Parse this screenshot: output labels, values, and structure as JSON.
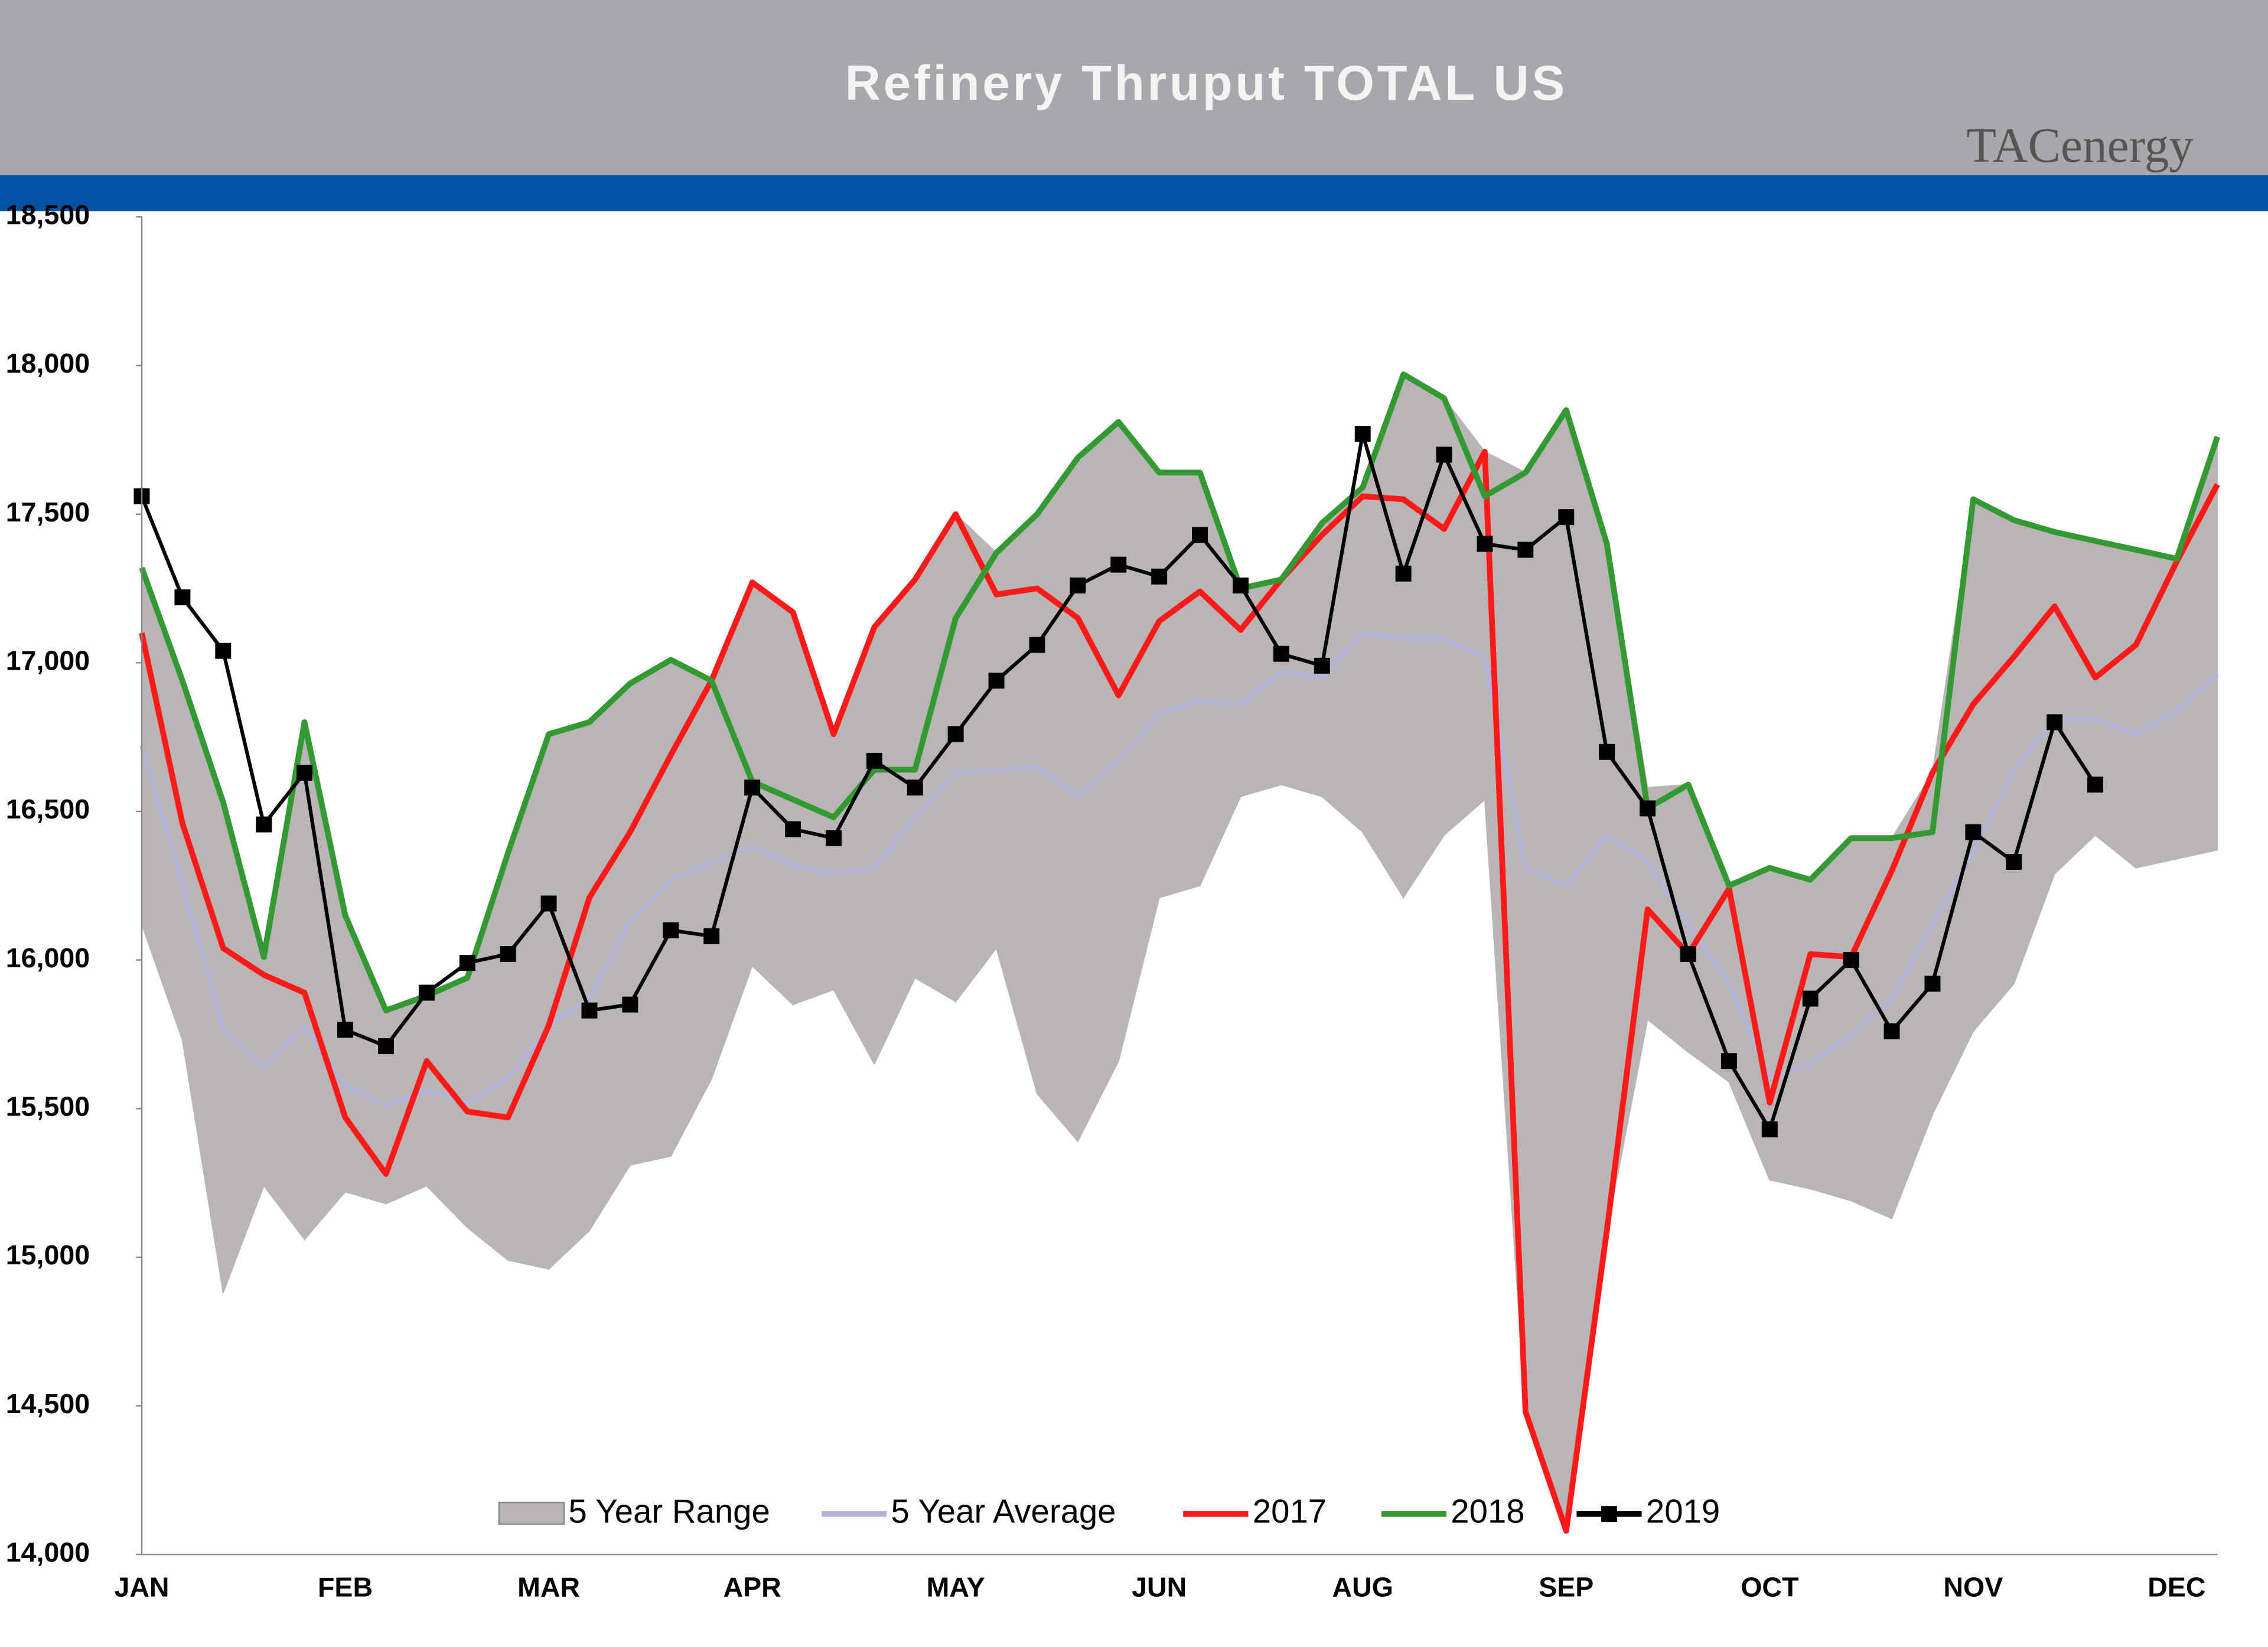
{
  "chart_data": {
    "type": "line",
    "title": "Refinery Thruput TOTAL US",
    "logo": "TACenergy",
    "categories": [
      "JAN",
      null,
      null,
      null,
      null,
      "FEB",
      null,
      null,
      null,
      null,
      "MAR",
      null,
      null,
      null,
      null,
      "APR",
      null,
      null,
      null,
      null,
      "MAY",
      null,
      null,
      null,
      null,
      "JUN",
      null,
      null,
      null,
      null,
      "AUG",
      null,
      null,
      null,
      null,
      "SEP",
      null,
      null,
      null,
      null,
      "OCT",
      null,
      null,
      null,
      null,
      "NOV",
      null,
      null,
      null,
      null,
      "DEC",
      null
    ],
    "ylim": [
      14000,
      18500
    ],
    "yticks": [
      {
        "value": 14000,
        "label": "14,000"
      },
      {
        "value": 14500,
        "label": "14,500"
      },
      {
        "value": 15000,
        "label": "15,000"
      },
      {
        "value": 15500,
        "label": "15,500"
      },
      {
        "value": 16000,
        "label": "16,000"
      },
      {
        "value": 16500,
        "label": "16,500"
      },
      {
        "value": 17000,
        "label": "17,000"
      },
      {
        "value": 17500,
        "label": "17,500"
      },
      {
        "value": 18000,
        "label": "18,000"
      },
      {
        "value": 18500,
        "label": "18,500"
      }
    ],
    "grid": false,
    "legend": "bottom",
    "series": [
      {
        "name": "5 Year Range",
        "kind": "range",
        "color": "#b9b5b5",
        "low": [
          16120,
          15730,
          14880,
          15240,
          15060,
          15220,
          15180,
          15240,
          15100,
          14990,
          14960,
          15090,
          15310,
          15340,
          15600,
          15980,
          15850,
          15900,
          15650,
          15940,
          15860,
          16040,
          15550,
          15390,
          15660,
          16210,
          16250,
          16550,
          16590,
          16550,
          16430,
          16210,
          16420,
          16540,
          14470,
          14080,
          15090,
          15800,
          15690,
          15590,
          15260,
          15230,
          15190,
          15130,
          15480,
          15760,
          15920,
          16290,
          16420,
          16310,
          16340,
          16370
        ],
        "high": [
          17320,
          16940,
          16530,
          16010,
          16800,
          16150,
          15830,
          15880,
          15940,
          16360,
          16760,
          16800,
          16930,
          17010,
          16940,
          17270,
          17170,
          16760,
          17120,
          17280,
          17500,
          17370,
          17500,
          17690,
          17810,
          17640,
          17640,
          17250,
          17280,
          17470,
          17590,
          17970,
          17890,
          17710,
          17640,
          17850,
          17400,
          16580,
          16590,
          16250,
          16310,
          16270,
          16410,
          16410,
          16630,
          17550,
          17480,
          17440,
          17410,
          17380,
          17350,
          17760
        ]
      },
      {
        "name": "5 Year Average",
        "color": "#b4b4d8",
        "values": [
          16720,
          16260,
          15770,
          15640,
          15780,
          15580,
          15510,
          15560,
          15520,
          15600,
          15780,
          15870,
          16130,
          16270,
          16330,
          16380,
          16320,
          16290,
          16310,
          16480,
          16630,
          16640,
          16650,
          16550,
          16670,
          16830,
          16870,
          16860,
          16970,
          16950,
          17100,
          17080,
          17080,
          17020,
          16310,
          16250,
          16420,
          16330,
          16120,
          15920,
          15600,
          15650,
          15750,
          15870,
          16120,
          16360,
          16640,
          16810,
          16810,
          16760,
          16840,
          16960
        ]
      },
      {
        "name": "2017",
        "color": "#ff1a1a",
        "values": [
          17100,
          16460,
          16040,
          15950,
          15890,
          15470,
          15280,
          15660,
          15490,
          15470,
          15780,
          16210,
          16430,
          16690,
          16940,
          17270,
          17170,
          16760,
          17120,
          17280,
          17500,
          17230,
          17250,
          17150,
          16890,
          17140,
          17240,
          17110,
          17280,
          17430,
          17560,
          17550,
          17450,
          17710,
          14480,
          14080,
          15090,
          16170,
          16020,
          16240,
          15520,
          16020,
          16010,
          16300,
          16630,
          16860,
          17020,
          17190,
          16950,
          17060,
          17340,
          17600
        ]
      },
      {
        "name": "2018",
        "color": "#339933",
        "values": [
          17320,
          16940,
          16530,
          16010,
          16800,
          16150,
          15830,
          15880,
          15940,
          16360,
          16760,
          16800,
          16930,
          17010,
          16940,
          16600,
          16540,
          16480,
          16640,
          16640,
          17150,
          17370,
          17500,
          17690,
          17810,
          17640,
          17640,
          17250,
          17280,
          17470,
          17590,
          17970,
          17890,
          17560,
          17640,
          17850,
          17400,
          16510,
          16590,
          16250,
          16310,
          16270,
          16410,
          16410,
          16430,
          17550,
          17480,
          17440,
          17410,
          17380,
          17350,
          17760
        ]
      },
      {
        "name": "2019",
        "color": "#000000",
        "marker": "square",
        "values": [
          17560,
          17220,
          17040,
          16456,
          16630,
          15765,
          15710,
          15890,
          15990,
          16020,
          16190,
          15830,
          15850,
          16100,
          16080,
          16580,
          16440,
          16410,
          16670,
          16580,
          16760,
          16940,
          17060,
          17260,
          17330,
          17290,
          17430,
          17260,
          17030,
          16990,
          17770,
          17300,
          17700,
          17400,
          17380,
          17490,
          16700,
          16510,
          16020,
          15660,
          15430,
          15870,
          16000,
          15760,
          15920,
          16430,
          16330,
          16800,
          16590,
          null,
          null,
          null
        ]
      }
    ]
  }
}
